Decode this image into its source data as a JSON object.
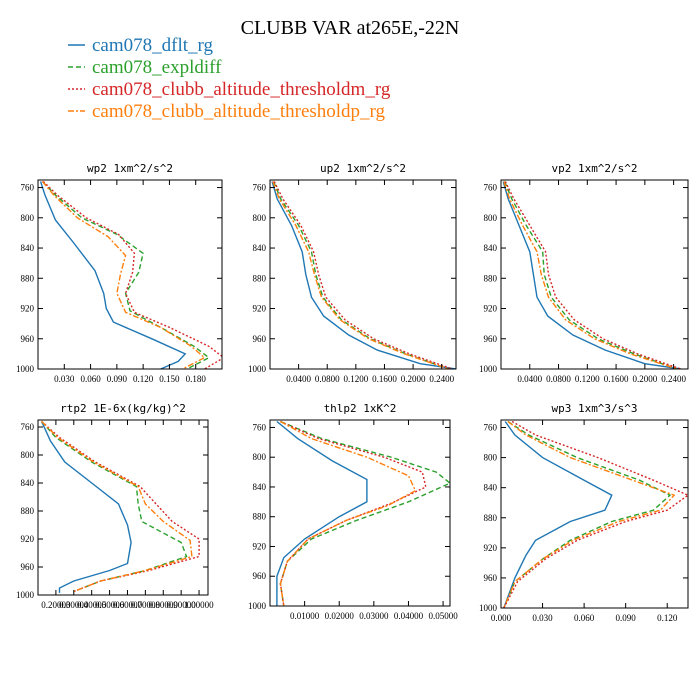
{
  "figure_title": "CLUBB VAR at265E,-22N",
  "colors": {
    "cam078_dflt_rg": "#1f77b4",
    "cam078_expldiff": "#2ca02c",
    "cam078_clubb_altitude_thresholdm_rg": "#d62728",
    "cam078_clubb_altitude_thresholdp_rg": "#ff7f0e"
  },
  "legend": [
    {
      "name": "cam078_dflt_rg",
      "color": "#1f77b4",
      "dash": "solid"
    },
    {
      "name": "cam078_expldiff",
      "color": "#2ca02c",
      "dash": "dash"
    },
    {
      "name": "cam078_clubb_altitude_thresholdm_rg",
      "color": "#d62728",
      "dash": "dot"
    },
    {
      "name": "cam078_clubb_altitude_thresholdp_rg",
      "color": "#ff7f0e",
      "dash": "dashdot"
    }
  ],
  "chart_data": [
    {
      "type": "line",
      "title": "wp2   1xm^2/s^2",
      "xlim": [
        0.0,
        0.21
      ],
      "ylim": [
        1000,
        750
      ],
      "xticks": [
        0.03,
        0.06,
        0.09,
        0.12,
        0.15,
        0.18
      ],
      "xtick_labels": [
        "0.030",
        "0.060",
        "0.090",
        "0.120",
        "0.150",
        "0.180"
      ],
      "yticks": [
        760,
        800,
        840,
        880,
        920,
        960,
        1000
      ],
      "series": [
        {
          "name": "cam078_dflt_rg",
          "x": [
            0.003,
            0.008,
            0.02,
            0.04,
            0.065,
            0.075,
            0.078,
            0.086,
            0.13,
            0.168,
            0.16,
            0.14
          ],
          "y": [
            752,
            770,
            803,
            832,
            870,
            900,
            920,
            938,
            960,
            980,
            990,
            1000
          ]
        },
        {
          "name": "cam078_expldiff",
          "x": [
            0.005,
            0.02,
            0.05,
            0.09,
            0.12,
            0.115,
            0.1,
            0.105,
            0.14,
            0.178,
            0.195,
            0.17
          ],
          "y": [
            752,
            770,
            800,
            822,
            847,
            872,
            900,
            923,
            945,
            970,
            985,
            1000
          ]
        },
        {
          "name": "cam078_clubb_altitude_thresholdm_rg",
          "x": [
            0.006,
            0.022,
            0.055,
            0.092,
            0.11,
            0.108,
            0.1,
            0.11,
            0.15,
            0.195,
            0.212,
            0.19
          ],
          "y": [
            752,
            770,
            800,
            822,
            847,
            872,
            900,
            925,
            945,
            970,
            985,
            1000
          ]
        },
        {
          "name": "cam078_clubb_altitude_thresholdp_rg",
          "x": [
            0.005,
            0.018,
            0.045,
            0.08,
            0.1,
            0.094,
            0.09,
            0.1,
            0.14,
            0.175,
            0.19,
            0.165
          ],
          "y": [
            752,
            770,
            800,
            825,
            850,
            875,
            900,
            925,
            945,
            970,
            985,
            1000
          ]
        }
      ]
    },
    {
      "type": "line",
      "title": "up2   1xm^2/s^2",
      "xlim": [
        0.0,
        0.26
      ],
      "ylim": [
        1000,
        750
      ],
      "xticks": [
        0.04,
        0.08,
        0.12,
        0.16,
        0.2,
        0.24
      ],
      "xtick_labels": [
        "0.0400",
        "0.0800",
        "0.1200",
        "0.1600",
        "0.2000",
        "0.2400"
      ],
      "yticks": [
        760,
        800,
        840,
        880,
        920,
        960,
        1000
      ],
      "series": [
        {
          "name": "cam078_dflt_rg",
          "x": [
            0.003,
            0.01,
            0.03,
            0.045,
            0.05,
            0.058,
            0.075,
            0.11,
            0.15,
            0.21,
            0.26
          ],
          "y": [
            752,
            775,
            810,
            845,
            875,
            905,
            930,
            955,
            975,
            993,
            1000
          ]
        },
        {
          "name": "cam078_expldiff",
          "x": [
            0.005,
            0.015,
            0.04,
            0.058,
            0.064,
            0.074,
            0.1,
            0.14,
            0.19,
            0.25
          ],
          "y": [
            752,
            775,
            810,
            845,
            875,
            905,
            935,
            960,
            980,
            1000
          ]
        },
        {
          "name": "cam078_clubb_altitude_thresholdm_rg",
          "x": [
            0.006,
            0.018,
            0.043,
            0.061,
            0.068,
            0.078,
            0.105,
            0.145,
            0.195,
            0.255
          ],
          "y": [
            752,
            775,
            810,
            845,
            875,
            905,
            935,
            960,
            980,
            1000
          ]
        },
        {
          "name": "cam078_clubb_altitude_thresholdp_rg",
          "x": [
            0.004,
            0.013,
            0.036,
            0.054,
            0.062,
            0.072,
            0.098,
            0.138,
            0.188,
            0.25
          ],
          "y": [
            752,
            775,
            810,
            845,
            875,
            905,
            935,
            960,
            980,
            1000
          ]
        }
      ]
    },
    {
      "type": "line",
      "title": "vp2   1xm^2/s^2",
      "xlim": [
        0.0,
        0.26
      ],
      "ylim": [
        1000,
        750
      ],
      "xticks": [
        0.04,
        0.08,
        0.12,
        0.16,
        0.2,
        0.24
      ],
      "xtick_labels": [
        "0.0400",
        "0.0800",
        "0.1200",
        "0.1600",
        "0.2000",
        "0.2400"
      ],
      "yticks": [
        760,
        800,
        840,
        880,
        920,
        960,
        1000
      ],
      "series": [
        {
          "name": "cam078_dflt_rg",
          "x": [
            0.003,
            0.01,
            0.025,
            0.04,
            0.045,
            0.05,
            0.065,
            0.1,
            0.145,
            0.2,
            0.25
          ],
          "y": [
            752,
            775,
            810,
            845,
            875,
            905,
            930,
            955,
            975,
            993,
            1000
          ]
        },
        {
          "name": "cam078_expldiff",
          "x": [
            0.005,
            0.015,
            0.035,
            0.058,
            0.06,
            0.07,
            0.095,
            0.135,
            0.185,
            0.245
          ],
          "y": [
            752,
            775,
            810,
            845,
            875,
            905,
            935,
            960,
            980,
            1000
          ]
        },
        {
          "name": "cam078_clubb_altitude_thresholdm_rg",
          "x": [
            0.006,
            0.018,
            0.04,
            0.062,
            0.066,
            0.076,
            0.102,
            0.142,
            0.19,
            0.25
          ],
          "y": [
            752,
            775,
            810,
            845,
            875,
            905,
            935,
            960,
            980,
            1000
          ]
        },
        {
          "name": "cam078_clubb_altitude_thresholdp_rg",
          "x": [
            0.004,
            0.012,
            0.03,
            0.05,
            0.056,
            0.066,
            0.09,
            0.13,
            0.18,
            0.245
          ],
          "y": [
            752,
            775,
            810,
            845,
            875,
            905,
            935,
            960,
            980,
            1000
          ]
        }
      ]
    },
    {
      "type": "line",
      "title": "rtp2   1E-6x(kg/kg)^2",
      "xlim": [
        0.1,
        1.05
      ],
      "ylim": [
        1000,
        750
      ],
      "xticks": [
        0.2,
        0.3,
        0.4,
        0.5,
        0.6,
        0.7,
        0.8,
        0.9,
        1.0
      ],
      "xtick_labels": [
        "0.20000",
        "0.30000",
        "0.40000",
        "0.50000",
        "0.60000",
        "0.70000",
        "0.80000",
        "0.90000",
        "1.00000"
      ],
      "yticks": [
        760,
        800,
        840,
        880,
        920,
        960,
        1000
      ],
      "series": [
        {
          "name": "cam078_dflt_rg",
          "x": [
            0.12,
            0.17,
            0.25,
            0.4,
            0.55,
            0.6,
            0.62,
            0.6,
            0.5,
            0.3,
            0.22,
            0.22
          ],
          "y": [
            752,
            780,
            810,
            840,
            870,
            900,
            925,
            955,
            965,
            980,
            990,
            997
          ]
        },
        {
          "name": "cam078_expldiff",
          "x": [
            0.12,
            0.2,
            0.4,
            0.65,
            0.66,
            0.68,
            0.9,
            0.93,
            0.7,
            0.45,
            0.3
          ],
          "y": [
            752,
            775,
            810,
            845,
            870,
            895,
            925,
            945,
            965,
            980,
            995
          ]
        },
        {
          "name": "cam078_clubb_altitude_thresholdm_rg",
          "x": [
            0.12,
            0.22,
            0.42,
            0.67,
            0.76,
            0.85,
            1.0,
            1.0,
            0.72,
            0.45,
            0.3
          ],
          "y": [
            752,
            775,
            810,
            845,
            870,
            895,
            920,
            945,
            965,
            980,
            995
          ]
        },
        {
          "name": "cam078_clubb_altitude_thresholdp_rg",
          "x": [
            0.12,
            0.21,
            0.41,
            0.66,
            0.7,
            0.8,
            0.95,
            0.96,
            0.7,
            0.45,
            0.3
          ],
          "y": [
            752,
            775,
            810,
            845,
            870,
            895,
            922,
            945,
            965,
            980,
            995
          ]
        }
      ]
    },
    {
      "type": "line",
      "title": "thlp2   1xK^2",
      "xlim": [
        0.0,
        0.052
      ],
      "ylim": [
        1000,
        750
      ],
      "xticks": [
        0.01,
        0.02,
        0.03,
        0.04,
        0.05
      ],
      "xtick_labels": [
        "0.01000",
        "0.02000",
        "0.03000",
        "0.04000",
        "0.05000"
      ],
      "yticks": [
        760,
        800,
        840,
        880,
        920,
        960,
        1000
      ],
      "series": [
        {
          "name": "cam078_dflt_rg",
          "x": [
            0.002,
            0.008,
            0.018,
            0.028,
            0.028,
            0.02,
            0.01,
            0.004,
            0.002,
            0.002,
            0.002
          ],
          "y": [
            752,
            775,
            805,
            830,
            860,
            880,
            910,
            935,
            960,
            980,
            1000
          ]
        },
        {
          "name": "cam078_expldiff",
          "x": [
            0.003,
            0.015,
            0.035,
            0.048,
            0.052,
            0.04,
            0.025,
            0.012,
            0.005,
            0.003,
            0.004
          ],
          "y": [
            752,
            775,
            800,
            820,
            835,
            860,
            885,
            910,
            940,
            970,
            1000
          ]
        },
        {
          "name": "cam078_clubb_altitude_thresholdm_rg",
          "x": [
            0.003,
            0.014,
            0.033,
            0.044,
            0.045,
            0.035,
            0.022,
            0.011,
            0.005,
            0.003,
            0.004
          ],
          "y": [
            752,
            775,
            800,
            820,
            840,
            862,
            885,
            910,
            940,
            970,
            1000
          ]
        },
        {
          "name": "cam078_clubb_altitude_thresholdp_rg",
          "x": [
            0.003,
            0.012,
            0.028,
            0.04,
            0.042,
            0.034,
            0.022,
            0.011,
            0.005,
            0.003,
            0.004
          ],
          "y": [
            752,
            775,
            800,
            825,
            845,
            865,
            885,
            910,
            940,
            970,
            1000
          ]
        }
      ]
    },
    {
      "type": "line",
      "title": "wp3   1xm^3/s^3",
      "xlim": [
        0.0,
        0.135
      ],
      "ylim": [
        1000,
        750
      ],
      "xticks": [
        0.0,
        0.03,
        0.06,
        0.09,
        0.12
      ],
      "xtick_labels": [
        "0.000",
        "0.030",
        "0.060",
        "0.090",
        "0.120"
      ],
      "yticks": [
        760,
        800,
        840,
        880,
        920,
        960,
        1000
      ],
      "series": [
        {
          "name": "cam078_dflt_rg",
          "x": [
            0.003,
            0.01,
            0.03,
            0.06,
            0.08,
            0.075,
            0.05,
            0.025,
            0.018,
            0.01,
            0.002
          ],
          "y": [
            752,
            770,
            800,
            830,
            850,
            870,
            885,
            910,
            930,
            960,
            1000
          ]
        },
        {
          "name": "cam078_expldiff",
          "x": [
            0.005,
            0.02,
            0.055,
            0.1,
            0.122,
            0.11,
            0.08,
            0.05,
            0.03,
            0.01,
            0.002
          ],
          "y": [
            752,
            770,
            800,
            830,
            850,
            870,
            885,
            910,
            935,
            965,
            1000
          ]
        },
        {
          "name": "cam078_clubb_altitude_thresholdm_rg",
          "x": [
            0.008,
            0.025,
            0.07,
            0.11,
            0.135,
            0.12,
            0.09,
            0.055,
            0.032,
            0.012,
            0.002
          ],
          "y": [
            752,
            770,
            800,
            830,
            850,
            870,
            885,
            910,
            935,
            965,
            1000
          ]
        },
        {
          "name": "cam078_clubb_altitude_thresholdp_rg",
          "x": [
            0.005,
            0.018,
            0.05,
            0.095,
            0.125,
            0.115,
            0.085,
            0.052,
            0.03,
            0.01,
            0.002
          ],
          "y": [
            752,
            770,
            800,
            830,
            850,
            870,
            885,
            910,
            935,
            965,
            1000
          ]
        }
      ]
    }
  ]
}
